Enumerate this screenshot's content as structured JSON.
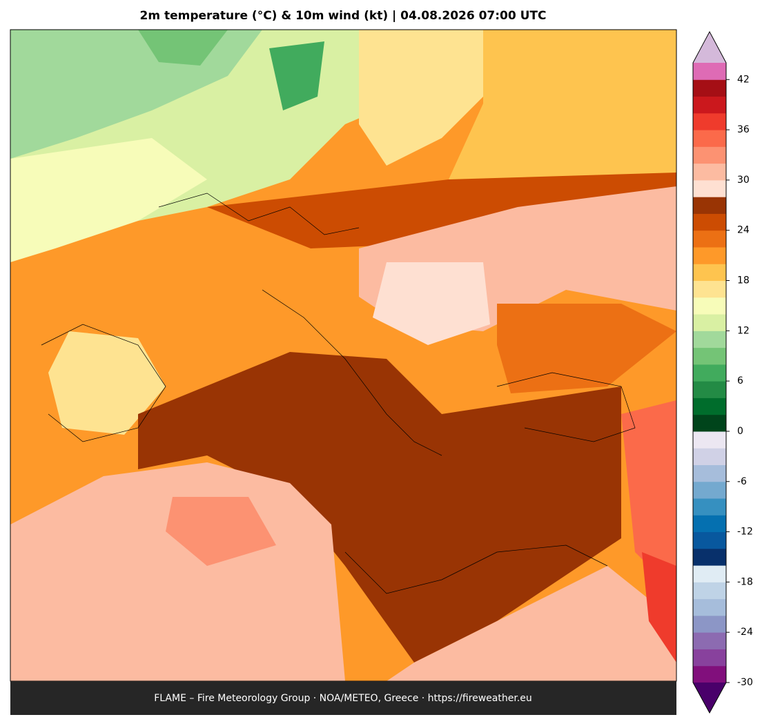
{
  "header": {
    "title": "2m temperature (°C) & 10m wind (kt)  |  04.08.2026 07:00 UTC"
  },
  "colorbar": {
    "lim": [
      -30,
      44
    ],
    "ticks": [
      -30,
      -24,
      -18,
      -12,
      -6,
      0,
      6,
      12,
      18,
      24,
      30,
      36,
      42
    ],
    "colors": [
      "#810f7c",
      "#88419d",
      "#8c6bb1",
      "#8c96c6",
      "#a6bddb",
      "#bfd3e6",
      "#e0ecf4",
      "#08306b",
      "#08589e",
      "#0570b0",
      "#3690c0",
      "#74a9cf",
      "#a6bddb",
      "#d0d1e6",
      "#ece7f2",
      "#00441b",
      "#006d2c",
      "#238b45",
      "#41ab5d",
      "#74c476",
      "#a1d99b",
      "#d9f0a3",
      "#f7fcb9",
      "#fee391",
      "#fec44f",
      "#fe9929",
      "#ec7014",
      "#cc4c02",
      "#993404",
      "#fee0d2",
      "#fcbba1",
      "#fc9272",
      "#fb6a4a",
      "#ef3b2c",
      "#cb181d",
      "#a50f15",
      "#de6bb5"
    ],
    "extend_colors": {
      "min": "#49006a",
      "max": "#d4b9da"
    }
  },
  "footer": {
    "text": "FLAME – Fire Meteorology Group · NOA/METEO, Greece · https://fireweather.eu"
  }
}
